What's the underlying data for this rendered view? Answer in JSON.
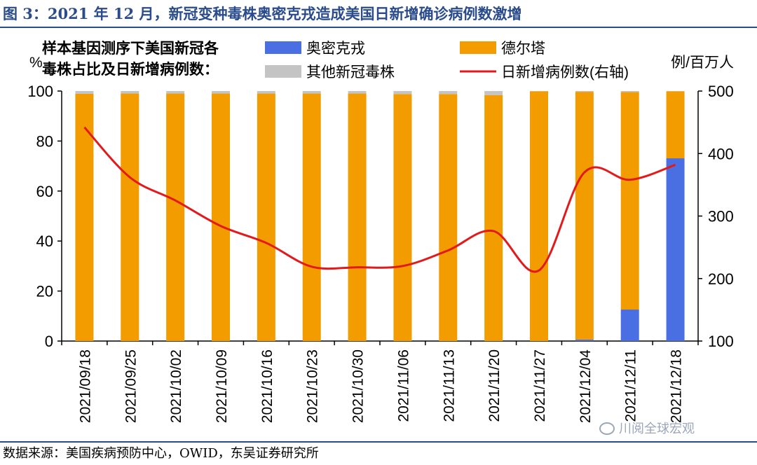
{
  "figure_title": "图 3：2021 年 12 月，新冠变种毒株奥密克戎造成美国日新增确诊病例数激增",
  "source_note": "数据来源：美国疾病预防中心，OWID，东吴证券研究所",
  "watermark": "川阅全球宏观",
  "colors": {
    "omicron": "#4a6fe3",
    "delta": "#f39c00",
    "other": "#c4c4c4",
    "cases": "#e31a1c",
    "title": "#2a4c8c"
  },
  "chart_data": {
    "type": "bar",
    "legend_title_lines": [
      "样本基因测序下美国新冠各",
      "毒株占比及日新增病例数："
    ],
    "left_unit": "%",
    "right_unit": "例/百万人",
    "categories": [
      "2021/09/18",
      "2021/09/25",
      "2021/10/02",
      "2021/10/09",
      "2021/10/16",
      "2021/10/23",
      "2021/10/30",
      "2021/11/06",
      "2021/11/13",
      "2021/11/20",
      "2021/11/27",
      "2021/12/04",
      "2021/12/11",
      "2021/12/18"
    ],
    "left_axis": {
      "min": 0,
      "max": 100,
      "ticks": [
        0,
        20,
        40,
        60,
        80,
        100
      ]
    },
    "right_axis": {
      "min": 100,
      "max": 500,
      "ticks": [
        100,
        200,
        300,
        400,
        500
      ]
    },
    "stacked_series": [
      {
        "name": "奥密克戎",
        "values": [
          0,
          0,
          0,
          0,
          0,
          0,
          0,
          0,
          0,
          0,
          0,
          0.6,
          12.6,
          73.1
        ]
      },
      {
        "name": "德尔塔",
        "values": [
          98.9,
          99.0,
          99.0,
          99.0,
          99.0,
          99.0,
          99.0,
          98.8,
          98.8,
          98.4,
          99.9,
          99.1,
          87.0,
          26.8
        ]
      },
      {
        "name": "其他新冠毒株",
        "values": [
          1.1,
          1.0,
          1.0,
          1.0,
          1.0,
          1.0,
          1.0,
          1.2,
          1.2,
          1.6,
          0.1,
          0.3,
          0.4,
          0.1
        ]
      }
    ],
    "line_series": {
      "name": "日新增病例数(右轴)",
      "axis": "right",
      "values": [
        442,
        362,
        325,
        284,
        257,
        219,
        218,
        220,
        245,
        276,
        213,
        370,
        358,
        382
      ]
    },
    "legend": [
      "奥密克戎",
      "德尔塔",
      "其他新冠毒株",
      "日新增病例数(右轴)"
    ],
    "grid": false,
    "legend_placement": "top"
  }
}
